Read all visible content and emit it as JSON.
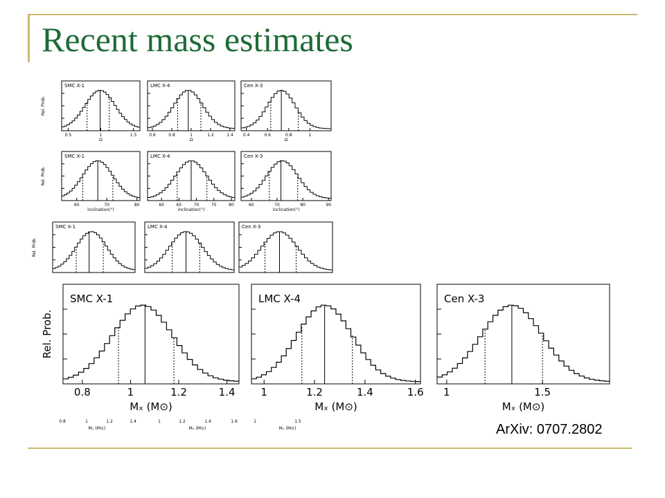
{
  "slide": {
    "title": "Recent mass estimates",
    "citation": "ArXiv: 0707.2802",
    "accent_color": "#1f6b37",
    "rule_color": "#cdb86a"
  },
  "chart_data": [
    {
      "type": "area",
      "row": "omega",
      "panel": "SMC X-1",
      "ylabel": "Rel. Prob.",
      "xlabel": "Ω",
      "xlim": [
        0.4,
        1.6
      ],
      "ticks": [
        0.5,
        1,
        1.5
      ],
      "tick_labels": [
        "0.5",
        "1",
        "1.5"
      ],
      "peak": 0.99,
      "width": 0.23,
      "median": 0.99,
      "lower": 0.79,
      "upper": 1.13
    },
    {
      "type": "area",
      "row": "omega",
      "panel": "LMC X-4",
      "ylabel": "",
      "xlabel": "Ω",
      "xlim": [
        0.55,
        1.45
      ],
      "ticks": [
        0.6,
        0.8,
        1,
        1.2,
        1.4
      ],
      "tick_labels": [
        "0.6",
        "0.8",
        "1",
        "1.2",
        "1.4"
      ],
      "peak": 0.97,
      "width": 0.15,
      "median": 0.97,
      "lower": 0.86,
      "upper": 1.1
    },
    {
      "type": "area",
      "row": "omega",
      "panel": "Cen X-3",
      "ylabel": "",
      "xlabel": "Ω",
      "xlim": [
        0.35,
        1.2
      ],
      "ticks": [
        0.4,
        0.6,
        0.8,
        1
      ],
      "tick_labels": [
        "0.4",
        "0.6",
        "0.8",
        "1"
      ],
      "peak": 0.73,
      "width": 0.13,
      "median": 0.73,
      "lower": 0.63,
      "upper": 0.89
    },
    {
      "type": "area",
      "row": "inclination",
      "panel": "SMC X-1",
      "ylabel": "Rel. Prob.",
      "xlabel": "inclination(°)",
      "xlim": [
        55,
        81
      ],
      "ticks": [
        60,
        70,
        80
      ],
      "tick_labels": [
        "60",
        "70",
        "80"
      ],
      "peak": 67,
      "width": 5,
      "median": 67,
      "lower": 62,
      "upper": 72
    },
    {
      "type": "area",
      "row": "inclination",
      "panel": "LMC X-4",
      "ylabel": "",
      "xlabel": "inclination(°)",
      "xlim": [
        56,
        81
      ],
      "ticks": [
        60,
        65,
        70,
        75,
        80
      ],
      "tick_labels": [
        "60",
        "65",
        "70",
        "75",
        "80"
      ],
      "peak": 68.5,
      "width": 4.5,
      "median": 68.5,
      "lower": 64.5,
      "upper": 73
    },
    {
      "type": "area",
      "row": "inclination",
      "panel": "Cen X-3",
      "ylabel": "",
      "xlabel": "inclination(°)",
      "xlim": [
        56,
        91
      ],
      "ticks": [
        60,
        70,
        80,
        90
      ],
      "tick_labels": [
        "60",
        "70",
        "80",
        "90"
      ],
      "peak": 72,
      "width": 6,
      "median": 71.5,
      "lower": 67,
      "upper": 78
    },
    {
      "type": "area",
      "row": "mass-small",
      "panel": "SMC X-1",
      "ylabel": "Rel. Prob.",
      "xlabel": "",
      "xlim": [
        0.75,
        1.45
      ],
      "ticks": [],
      "tick_labels": [],
      "peak": 1.08,
      "width": 0.13,
      "median": 1.06,
      "lower": 0.95,
      "upper": 1.18
    },
    {
      "type": "area",
      "row": "mass-small",
      "panel": "LMC X-4",
      "ylabel": "",
      "xlabel": "",
      "xlim": [
        0.95,
        1.6
      ],
      "ticks": [],
      "tick_labels": [],
      "peak": 1.25,
      "width": 0.12,
      "median": 1.25,
      "lower": 1.15,
      "upper": 1.35
    },
    {
      "type": "area",
      "row": "mass-small",
      "panel": "Cen X-3",
      "ylabel": "",
      "xlabel": "",
      "xlim": [
        0.95,
        1.85
      ],
      "ticks": [],
      "tick_labels": [],
      "peak": 1.34,
      "width": 0.17,
      "median": 1.34,
      "lower": 1.2,
      "upper": 1.5
    },
    {
      "type": "area",
      "row": "mass-large",
      "panel": "SMC X-1",
      "ylabel": "Rel. Prob.",
      "xlabel": "Mₓ (M⊙)",
      "xlim": [
        0.72,
        1.45
      ],
      "ticks": [
        0.8,
        1,
        1.2,
        1.4
      ],
      "tick_labels": [
        "0.8",
        "1",
        "1.2",
        "1.4"
      ],
      "peak": 1.05,
      "width": 0.125,
      "median": 1.06,
      "lower": 0.95,
      "upper": 1.18
    },
    {
      "type": "area",
      "row": "mass-large",
      "panel": "LMC X-4",
      "ylabel": "",
      "xlabel": "Mₓ (M⊙)",
      "xlim": [
        0.95,
        1.62
      ],
      "ticks": [
        1,
        1.2,
        1.4,
        1.6
      ],
      "tick_labels": [
        "1",
        "1.2",
        "1.4",
        "1.6"
      ],
      "peak": 1.24,
      "width": 0.11,
      "median": 1.24,
      "lower": 1.15,
      "upper": 1.35
    },
    {
      "type": "area",
      "row": "mass-large",
      "panel": "Cen X-3",
      "ylabel": "",
      "xlabel": "Mₓ (M⊙)",
      "xlim": [
        0.95,
        1.85
      ],
      "ticks": [
        1,
        1.5
      ],
      "tick_labels": [
        "1",
        "1.5"
      ],
      "peak": 1.34,
      "width": 0.16,
      "median": 1.34,
      "lower": 1.2,
      "upper": 1.5
    }
  ],
  "bottom_strip": {
    "ticks_left": [
      "0.8",
      "1",
      "1.2",
      "1.4"
    ],
    "xlabel_left": "Mₓ (M⊙)",
    "ticks_mid": [
      "1",
      "1.2",
      "1.4",
      "1.6"
    ],
    "xlabel_mid": "Mₓ (M⊙)",
    "ticks_right": [
      "1",
      "1.5"
    ],
    "xlabel_right": "Mₓ (M⊙)"
  }
}
